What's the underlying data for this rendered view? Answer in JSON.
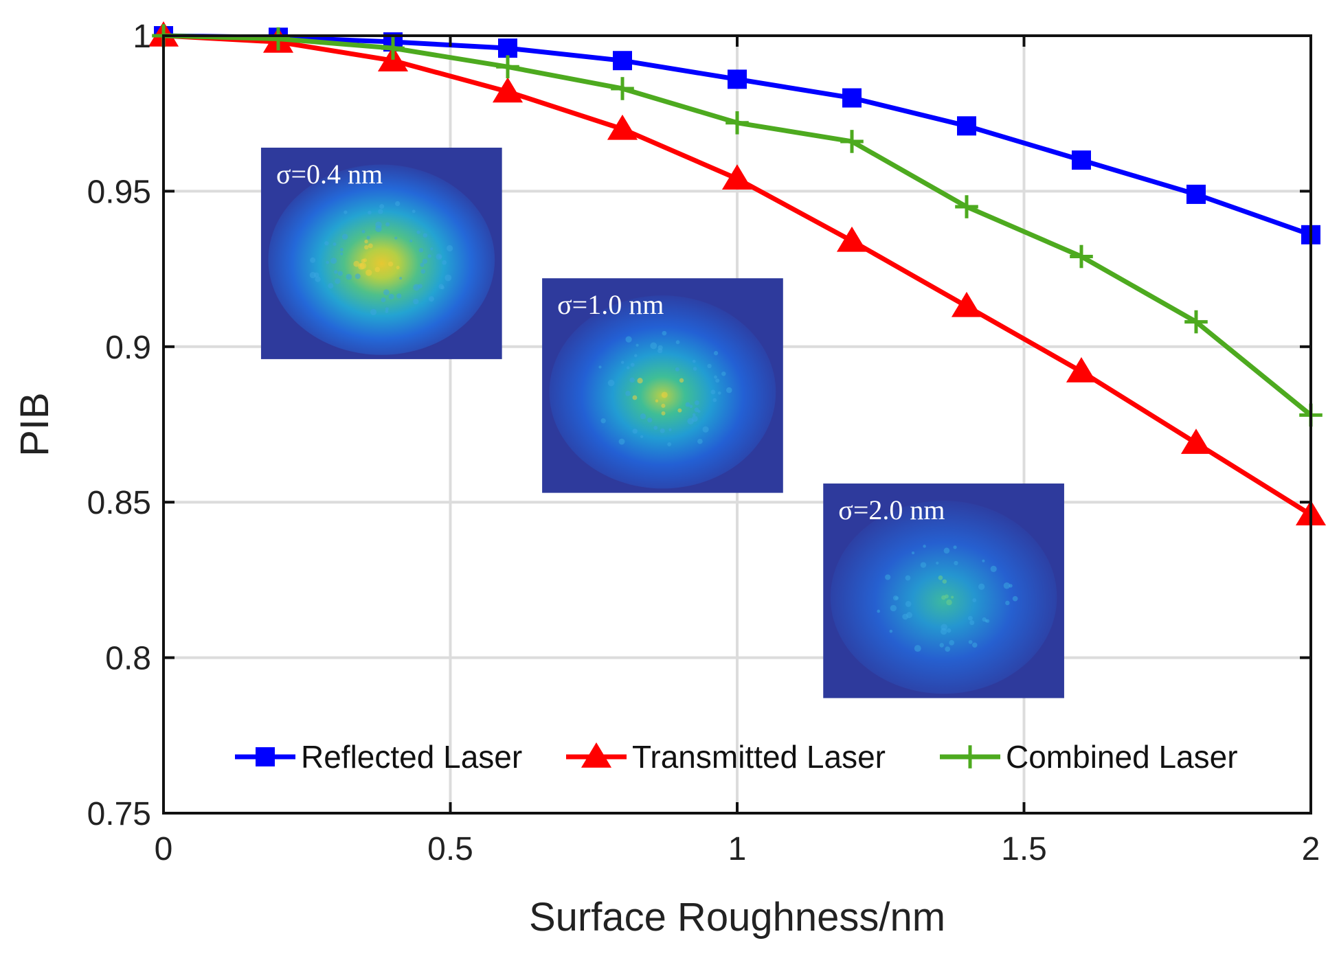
{
  "chart_data": {
    "type": "line",
    "xlabel": "Surface Roughness/nm",
    "ylabel": "PIB",
    "xlim": [
      0,
      2
    ],
    "ylim": [
      0.75,
      1
    ],
    "xticks": [
      "0",
      "0.5",
      "1",
      "1.5",
      "2"
    ],
    "yticks": [
      "0.75",
      "0.8",
      "0.85",
      "0.9",
      "0.95",
      "1"
    ],
    "grid": true,
    "legend_position": "bottom",
    "x": [
      0,
      0.2,
      0.4,
      0.6,
      0.8,
      1.0,
      1.2,
      1.4,
      1.6,
      1.8,
      2.0
    ],
    "series": [
      {
        "name": "Reflected Laser",
        "color": "#0000ff",
        "marker": "square",
        "values": [
          1.0,
          0.9995,
          0.998,
          0.996,
          0.992,
          0.986,
          0.98,
          0.971,
          0.96,
          0.949,
          0.936
        ]
      },
      {
        "name": "Transmitted Laser",
        "color": "#ff0000",
        "marker": "triangle",
        "values": [
          1.0,
          0.998,
          0.992,
          0.982,
          0.97,
          0.954,
          0.934,
          0.913,
          0.892,
          0.869,
          0.846
        ]
      },
      {
        "name": "Combined Laser",
        "color": "#4daa1f",
        "marker": "plus",
        "values": [
          1.0,
          0.999,
          0.996,
          0.99,
          0.983,
          0.972,
          0.966,
          0.945,
          0.929,
          0.908,
          0.878
        ]
      }
    ],
    "insets": [
      {
        "label": "σ=0.4 nm",
        "x0": 0.17,
        "x1": 0.59,
        "y_top": 0.964,
        "y_bottom": 0.896,
        "brightness": "high"
      },
      {
        "label": "σ=1.0 nm",
        "x0": 0.66,
        "x1": 1.08,
        "y_top": 0.922,
        "y_bottom": 0.853,
        "brightness": "medium"
      },
      {
        "label": "σ=2.0 nm",
        "x0": 1.15,
        "x1": 1.57,
        "y_top": 0.856,
        "y_bottom": 0.787,
        "brightness": "low"
      }
    ]
  }
}
